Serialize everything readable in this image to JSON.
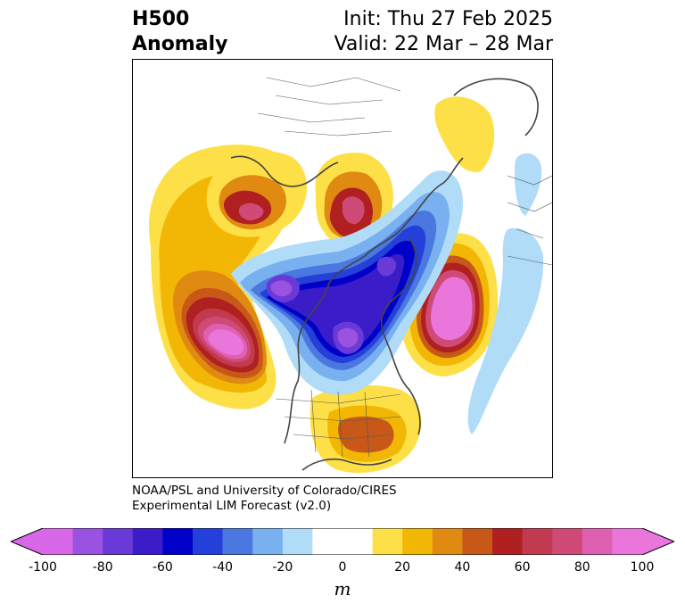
{
  "title": {
    "left_line1": "H500",
    "left_line2": "Anomaly",
    "right_line1": "Init: Thu 27 Feb 2025",
    "right_line2": "Valid: 22 Mar – 28 Mar"
  },
  "credit": {
    "line1": "NOAA/PSL and University of Colorado/CIRES",
    "line2": "Experimental LIM Forecast (v2.0)"
  },
  "colorbar": {
    "unit": "m",
    "ticks": [
      "-100",
      "-80",
      "-60",
      "-40",
      "-20",
      "0",
      "20",
      "40",
      "60",
      "80",
      "100"
    ],
    "colors": [
      "#d868e8",
      "#9c52e0",
      "#6a3ad8",
      "#3a1cc8",
      "#0000c8",
      "#2440d8",
      "#4a78e0",
      "#78b0f0",
      "#b0dcf8",
      "#ffffff",
      "#ffffff",
      "#fde047",
      "#f2b705",
      "#e08a12",
      "#c85818",
      "#b02020",
      "#c23a50",
      "#d04a78",
      "#de60b0",
      "#ea76dc"
    ],
    "extend_low_color": "#d868e8",
    "extend_high_color": "#ea76dc"
  },
  "map": {
    "projection": "north-polar-stereographic",
    "field": "500 hPa geopotential height anomaly"
  }
}
